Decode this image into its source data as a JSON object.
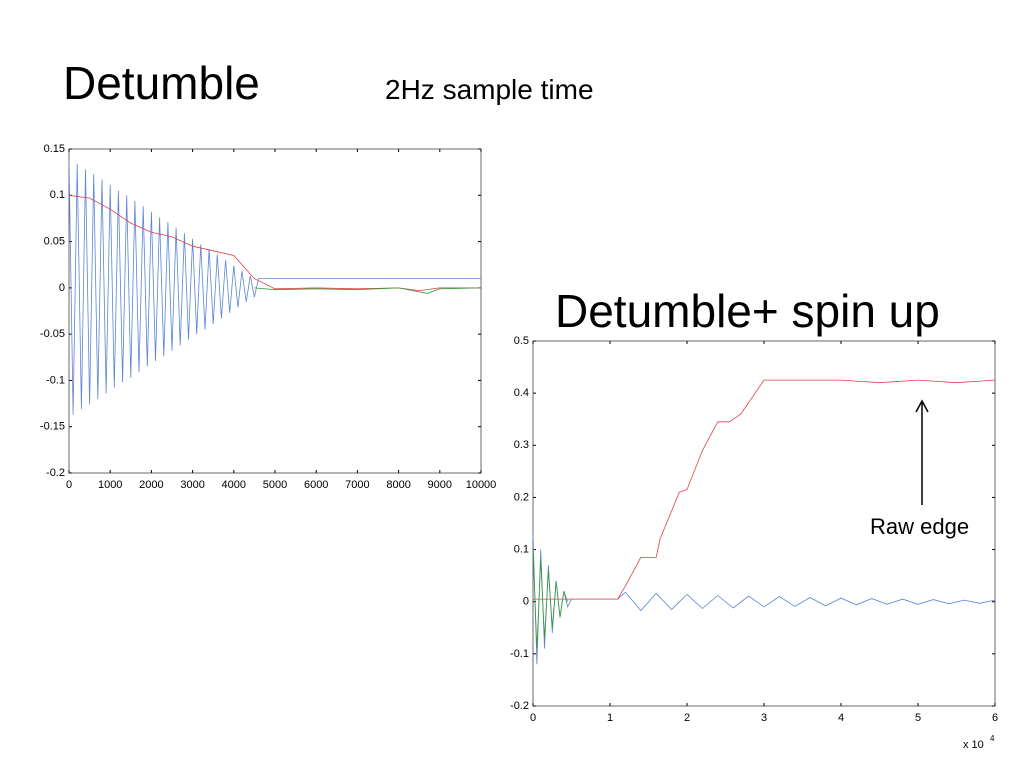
{
  "chart_data": [
    {
      "type": "line",
      "title": "Detumble",
      "subtitle": "2Hz sample time",
      "xlim": [
        0,
        10000
      ],
      "ylim": [
        -0.2,
        0.15
      ],
      "xticks": [
        0,
        1000,
        2000,
        3000,
        4000,
        5000,
        6000,
        7000,
        8000,
        9000,
        10000
      ],
      "yticks": [
        0.15,
        0.1,
        0.05,
        0,
        -0.05,
        -0.1,
        -0.15,
        -0.2
      ],
      "grid": false,
      "series": [
        {
          "color": "#5b86d6",
          "x": [
            0,
            100,
            200,
            300,
            400,
            500,
            600,
            700,
            800,
            900,
            1000,
            1100,
            1200,
            1300,
            1400,
            1500,
            1600,
            1700,
            1800,
            1900,
            2000,
            2100,
            2200,
            2300,
            2400,
            2500,
            2600,
            2700,
            2800,
            2900,
            3000,
            3100,
            3200,
            3300,
            3400,
            3500,
            3600,
            3700,
            3800,
            3900,
            4000,
            4100,
            4200,
            4300,
            4400,
            4500,
            4600,
            10000
          ],
          "values": [
            0.14,
            -0.137,
            0.134,
            -0.131,
            0.128,
            -0.126,
            0.123,
            -0.12,
            0.117,
            -0.114,
            0.111,
            -0.108,
            0.105,
            -0.102,
            0.1,
            -0.097,
            0.094,
            -0.091,
            0.088,
            -0.085,
            0.082,
            -0.079,
            0.076,
            -0.074,
            0.071,
            -0.068,
            0.065,
            -0.062,
            0.059,
            -0.056,
            0.053,
            -0.05,
            0.047,
            -0.045,
            0.042,
            -0.039,
            0.036,
            -0.033,
            0.03,
            -0.027,
            0.024,
            -0.021,
            0.018,
            -0.015,
            0.013,
            -0.01,
            0.01,
            0.01
          ]
        },
        {
          "color": "#e0404a",
          "x": [
            0,
            500,
            1000,
            1500,
            2000,
            2500,
            3000,
            3500,
            4000,
            4500,
            5000,
            6000,
            7000,
            8000,
            8500,
            9000,
            10000
          ],
          "values": [
            0.1,
            0.097,
            0.085,
            0.07,
            0.06,
            0.055,
            0.045,
            0.04,
            0.035,
            0.01,
            -0.001,
            0,
            -0.001,
            0,
            -0.003,
            0,
            0
          ]
        },
        {
          "color": "#3a9a3a",
          "x": [
            4500,
            5000,
            6000,
            7000,
            8000,
            8700,
            9000,
            10000
          ],
          "values": [
            0,
            -0.002,
            -0.001,
            -0.002,
            0,
            -0.006,
            -0.001,
            0
          ]
        }
      ]
    },
    {
      "type": "line",
      "title": "Detumble+ spin up",
      "annotations": [
        "Raw edge"
      ],
      "x_scale_label": "x 10",
      "x_scale_exponent": "4",
      "xlim": [
        0,
        60000
      ],
      "ylim": [
        -0.2,
        0.5
      ],
      "xticks": [
        {
          "value": 0,
          "label": "0"
        },
        {
          "value": 10000,
          "label": "1"
        },
        {
          "value": 20000,
          "label": "2"
        },
        {
          "value": 30000,
          "label": "3"
        },
        {
          "value": 40000,
          "label": "4"
        },
        {
          "value": 50000,
          "label": "5"
        },
        {
          "value": 60000,
          "label": "6"
        }
      ],
      "yticks": [
        0.5,
        0.4,
        0.3,
        0.2,
        0.1,
        0,
        -0.1,
        -0.2
      ],
      "grid": false,
      "series": [
        {
          "color": "#5b86d6",
          "x": [
            0,
            500,
            1000,
            1500,
            2000,
            2500,
            3000,
            3500,
            4000,
            4500,
            5000,
            11000,
            12000,
            14000,
            16000,
            18000,
            20000,
            22000,
            24000,
            26000,
            28000,
            30000,
            32000,
            34000,
            36000,
            38000,
            40000,
            42000,
            44000,
            46000,
            48000,
            50000,
            52000,
            54000,
            56000,
            58000,
            60000
          ],
          "values": [
            0.13,
            -0.12,
            0.1,
            -0.09,
            0.07,
            -0.06,
            0.04,
            -0.03,
            0.02,
            -0.01,
            0.005,
            0.005,
            0.018,
            -0.017,
            0.016,
            -0.015,
            0.014,
            -0.013,
            0.012,
            -0.012,
            0.011,
            -0.01,
            0.01,
            -0.009,
            0.008,
            -0.008,
            0.007,
            -0.006,
            0.006,
            -0.005,
            0.005,
            -0.005,
            0.004,
            -0.004,
            0.003,
            -0.003,
            0.003
          ]
        },
        {
          "color": "#e0404a",
          "x": [
            0,
            4500,
            11000,
            12000,
            14000,
            16000,
            16500,
            19000,
            20000,
            22000,
            24000,
            25500,
            27000,
            30000,
            35000,
            40000,
            45000,
            50000,
            55000,
            60000
          ],
          "values": [
            0.005,
            0.005,
            0.005,
            0.03,
            0.085,
            0.085,
            0.12,
            0.21,
            0.215,
            0.29,
            0.345,
            0.345,
            0.36,
            0.425,
            0.425,
            0.425,
            0.42,
            0.425,
            0.42,
            0.425
          ]
        },
        {
          "color": "#3a9a3a",
          "x": [
            0,
            500,
            1000,
            1500,
            2000,
            2500,
            3000,
            3500,
            4000,
            4500
          ],
          "values": [
            0.1,
            -0.09,
            0.08,
            -0.07,
            0.06,
            -0.05,
            0.04,
            -0.03,
            0.02,
            0
          ]
        }
      ]
    }
  ]
}
